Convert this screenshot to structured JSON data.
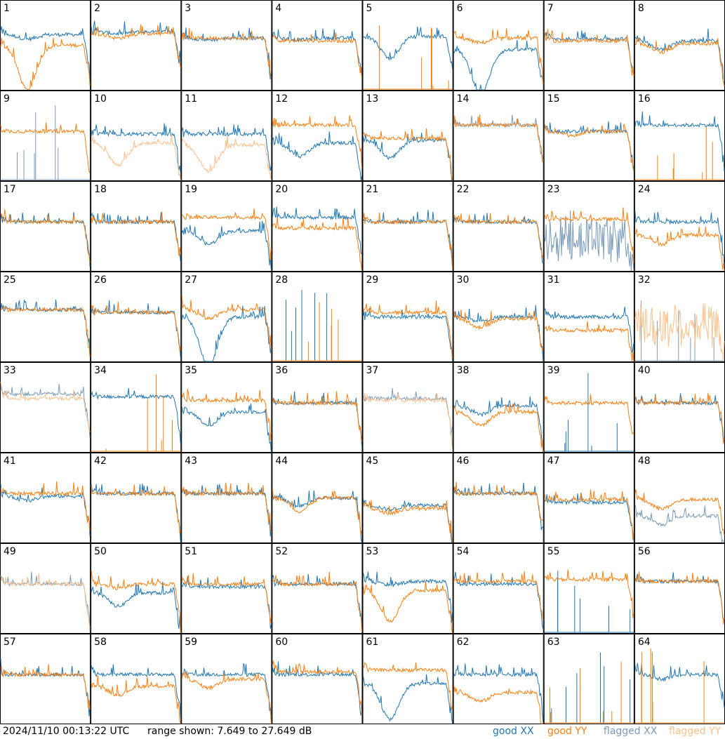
{
  "colors": {
    "good_xx": "#1f77b4",
    "good_yy": "#ff7f0e",
    "flagged_xx": "#7a9bb8",
    "flagged_yy": "#fdc08a",
    "border": "#000000"
  },
  "footer": {
    "timestamp": "2024/11/10 00:13:22 UTC",
    "range_text": "range shown: 7.649 to 27.649 dB",
    "legend": {
      "good_xx": "good XX",
      "good_yy": "good YY",
      "flagged_xx": "flagged XX",
      "flagged_yy": "flagged YY"
    }
  },
  "chart_data": {
    "type": "line",
    "layout": "8x8 small multiples",
    "ylim_db": [
      7.649,
      27.649
    ],
    "panels": [
      {
        "label": "1",
        "xx": {
          "lvl": 0.62,
          "dip": 0.05,
          "flag": false
        },
        "yy": {
          "lvl": 0.5,
          "dip": 0.5,
          "flag": false
        }
      },
      {
        "label": "2",
        "xx": {
          "lvl": 0.65,
          "dip": 0.02,
          "flag": false
        },
        "yy": {
          "lvl": 0.63,
          "dip": 0.05,
          "flag": false
        }
      },
      {
        "label": "3",
        "xx": {
          "lvl": 0.58,
          "dip": 0.02,
          "flag": false
        },
        "yy": {
          "lvl": 0.58,
          "dip": 0.0,
          "flag": false
        }
      },
      {
        "label": "4",
        "xx": {
          "lvl": 0.58,
          "dip": 0.02,
          "flag": false
        },
        "yy": {
          "lvl": 0.55,
          "dip": 0.0,
          "flag": false
        }
      },
      {
        "label": "5",
        "xx": {
          "lvl": 0.6,
          "dip": 0.25,
          "flag": false
        },
        "yy": {
          "lvl": 0.0,
          "dip": 0.0,
          "flag": false,
          "dead": true
        }
      },
      {
        "label": "6",
        "xx": {
          "lvl": 0.45,
          "dip": 0.5,
          "flag": false
        },
        "yy": {
          "lvl": 0.58,
          "dip": 0.05,
          "flag": false
        }
      },
      {
        "label": "7",
        "xx": {
          "lvl": 0.57,
          "dip": 0.0,
          "flag": false
        },
        "yy": {
          "lvl": 0.55,
          "dip": 0.0,
          "flag": false
        }
      },
      {
        "label": "8",
        "xx": {
          "lvl": 0.55,
          "dip": 0.1,
          "flag": false
        },
        "yy": {
          "lvl": 0.52,
          "dip": 0.1,
          "flag": false
        }
      },
      {
        "label": "9",
        "xx": {
          "lvl": 0.0,
          "dip": 0.0,
          "flag": true,
          "dead": true
        },
        "yy": {
          "lvl": 0.55,
          "dip": 0.0,
          "flag": false
        }
      },
      {
        "label": "10",
        "xx": {
          "lvl": 0.52,
          "dip": 0.0,
          "flag": false
        },
        "yy": {
          "lvl": 0.42,
          "dip": 0.25,
          "flag": true
        }
      },
      {
        "label": "11",
        "xx": {
          "lvl": 0.52,
          "dip": 0.0,
          "flag": false
        },
        "yy": {
          "lvl": 0.4,
          "dip": 0.3,
          "flag": true
        }
      },
      {
        "label": "12",
        "xx": {
          "lvl": 0.42,
          "dip": 0.15,
          "flag": false
        },
        "yy": {
          "lvl": 0.62,
          "dip": 0.0,
          "flag": false
        }
      },
      {
        "label": "13",
        "xx": {
          "lvl": 0.45,
          "dip": 0.2,
          "flag": false
        },
        "yy": {
          "lvl": 0.47,
          "dip": 0.0,
          "flag": false
        }
      },
      {
        "label": "14",
        "xx": {
          "lvl": 0.62,
          "dip": 0.0,
          "flag": true
        },
        "yy": {
          "lvl": 0.62,
          "dip": 0.0,
          "flag": false
        }
      },
      {
        "label": "15",
        "xx": {
          "lvl": 0.55,
          "dip": 0.0,
          "flag": false
        },
        "yy": {
          "lvl": 0.55,
          "dip": 0.05,
          "flag": false
        }
      },
      {
        "label": "16",
        "xx": {
          "lvl": 0.62,
          "dip": 0.0,
          "flag": false
        },
        "yy": {
          "lvl": 0.0,
          "dip": 0.0,
          "flag": false,
          "dead": true
        }
      },
      {
        "label": "17",
        "xx": {
          "lvl": 0.55,
          "dip": 0.0,
          "flag": false
        },
        "yy": {
          "lvl": 0.55,
          "dip": 0.0,
          "flag": false
        }
      },
      {
        "label": "18",
        "xx": {
          "lvl": 0.55,
          "dip": 0.0,
          "flag": false
        },
        "yy": {
          "lvl": 0.55,
          "dip": 0.0,
          "flag": false
        }
      },
      {
        "label": "19",
        "xx": {
          "lvl": 0.45,
          "dip": 0.15,
          "flag": false
        },
        "yy": {
          "lvl": 0.6,
          "dip": 0.0,
          "flag": false
        }
      },
      {
        "label": "20",
        "xx": {
          "lvl": 0.6,
          "dip": 0.0,
          "flag": false
        },
        "yy": {
          "lvl": 0.48,
          "dip": 0.0,
          "flag": false
        }
      },
      {
        "label": "21",
        "xx": {
          "lvl": 0.55,
          "dip": 0.0,
          "flag": false
        },
        "yy": {
          "lvl": 0.55,
          "dip": 0.0,
          "flag": false
        }
      },
      {
        "label": "22",
        "xx": {
          "lvl": 0.55,
          "dip": 0.0,
          "flag": false
        },
        "yy": {
          "lvl": 0.55,
          "dip": 0.0,
          "flag": false
        }
      },
      {
        "label": "23",
        "xx": {
          "lvl": 0.35,
          "dip": 0.0,
          "flag": true,
          "noisy": true
        },
        "yy": {
          "lvl": 0.58,
          "dip": 0.0,
          "flag": false
        }
      },
      {
        "label": "24",
        "xx": {
          "lvl": 0.55,
          "dip": 0.0,
          "flag": false
        },
        "yy": {
          "lvl": 0.4,
          "dip": 0.1,
          "flag": false
        }
      },
      {
        "label": "25",
        "xx": {
          "lvl": 0.58,
          "dip": 0.0,
          "flag": false
        },
        "yy": {
          "lvl": 0.58,
          "dip": 0.0,
          "flag": false
        }
      },
      {
        "label": "26",
        "xx": {
          "lvl": 0.55,
          "dip": 0.0,
          "flag": false
        },
        "yy": {
          "lvl": 0.55,
          "dip": 0.0,
          "flag": false
        }
      },
      {
        "label": "27",
        "xx": {
          "lvl": 0.5,
          "dip": 0.55,
          "flag": false
        },
        "yy": {
          "lvl": 0.58,
          "dip": 0.1,
          "flag": false
        }
      },
      {
        "label": "28",
        "xx": {
          "lvl": 0.0,
          "dip": 0.0,
          "flag": false,
          "dead": true
        },
        "yy": {
          "lvl": 0.0,
          "dip": 0.0,
          "flag": false,
          "dead": true
        }
      },
      {
        "label": "29",
        "xx": {
          "lvl": 0.5,
          "dip": 0.0,
          "flag": false
        },
        "yy": {
          "lvl": 0.55,
          "dip": 0.0,
          "flag": false
        }
      },
      {
        "label": "30",
        "xx": {
          "lvl": 0.5,
          "dip": 0.05,
          "flag": false
        },
        "yy": {
          "lvl": 0.48,
          "dip": 0.1,
          "flag": false
        }
      },
      {
        "label": "31",
        "xx": {
          "lvl": 0.5,
          "dip": 0.0,
          "flag": false
        },
        "yy": {
          "lvl": 0.35,
          "dip": 0.0,
          "flag": false
        }
      },
      {
        "label": "32",
        "xx": {
          "lvl": 0.0,
          "dip": 0.0,
          "flag": true,
          "dead": true
        },
        "yy": {
          "lvl": 0.4,
          "dip": 0.0,
          "flag": true,
          "noisy": true
        }
      },
      {
        "label": "33",
        "xx": {
          "lvl": 0.65,
          "dip": 0.0,
          "flag": true
        },
        "yy": {
          "lvl": 0.6,
          "dip": 0.0,
          "flag": true
        }
      },
      {
        "label": "34",
        "xx": {
          "lvl": 0.62,
          "dip": 0.0,
          "flag": false
        },
        "yy": {
          "lvl": 0.0,
          "dip": 0.0,
          "flag": false,
          "dead": true
        }
      },
      {
        "label": "35",
        "xx": {
          "lvl": 0.45,
          "dip": 0.15,
          "flag": false
        },
        "yy": {
          "lvl": 0.58,
          "dip": 0.0,
          "flag": false
        }
      },
      {
        "label": "36",
        "xx": {
          "lvl": 0.55,
          "dip": 0.0,
          "flag": false
        },
        "yy": {
          "lvl": 0.55,
          "dip": 0.0,
          "flag": false
        }
      },
      {
        "label": "37",
        "xx": {
          "lvl": 0.6,
          "dip": 0.0,
          "flag": true
        },
        "yy": {
          "lvl": 0.58,
          "dip": 0.0,
          "flag": true
        }
      },
      {
        "label": "38",
        "xx": {
          "lvl": 0.52,
          "dip": 0.1,
          "flag": false
        },
        "yy": {
          "lvl": 0.45,
          "dip": 0.15,
          "flag": false
        }
      },
      {
        "label": "39",
        "xx": {
          "lvl": 0.0,
          "dip": 0.0,
          "flag": false,
          "dead": true
        },
        "yy": {
          "lvl": 0.55,
          "dip": 0.0,
          "flag": false
        }
      },
      {
        "label": "40",
        "xx": {
          "lvl": 0.55,
          "dip": 0.0,
          "flag": false
        },
        "yy": {
          "lvl": 0.55,
          "dip": 0.0,
          "flag": false
        }
      },
      {
        "label": "41",
        "xx": {
          "lvl": 0.52,
          "dip": 0.05,
          "flag": false
        },
        "yy": {
          "lvl": 0.55,
          "dip": 0.0,
          "flag": false
        }
      },
      {
        "label": "42",
        "xx": {
          "lvl": 0.55,
          "dip": 0.0,
          "flag": false
        },
        "yy": {
          "lvl": 0.55,
          "dip": 0.0,
          "flag": false
        }
      },
      {
        "label": "43",
        "xx": {
          "lvl": 0.55,
          "dip": 0.0,
          "flag": false
        },
        "yy": {
          "lvl": 0.55,
          "dip": 0.0,
          "flag": false
        }
      },
      {
        "label": "44",
        "xx": {
          "lvl": 0.5,
          "dip": 0.1,
          "flag": false
        },
        "yy": {
          "lvl": 0.5,
          "dip": 0.15,
          "flag": false
        }
      },
      {
        "label": "45",
        "xx": {
          "lvl": 0.42,
          "dip": 0.05,
          "flag": false
        },
        "yy": {
          "lvl": 0.38,
          "dip": 0.05,
          "flag": false
        }
      },
      {
        "label": "46",
        "xx": {
          "lvl": 0.55,
          "dip": 0.0,
          "flag": false
        },
        "yy": {
          "lvl": 0.55,
          "dip": 0.0,
          "flag": false
        }
      },
      {
        "label": "47",
        "xx": {
          "lvl": 0.45,
          "dip": 0.0,
          "flag": false
        },
        "yy": {
          "lvl": 0.48,
          "dip": 0.0,
          "flag": false
        }
      },
      {
        "label": "48",
        "xx": {
          "lvl": 0.3,
          "dip": 0.1,
          "flag": true
        },
        "yy": {
          "lvl": 0.48,
          "dip": 0.1,
          "flag": false
        }
      },
      {
        "label": "49",
        "xx": {
          "lvl": 0.55,
          "dip": 0.0,
          "flag": true
        },
        "yy": {
          "lvl": 0.55,
          "dip": 0.0,
          "flag": true
        }
      },
      {
        "label": "50",
        "xx": {
          "lvl": 0.45,
          "dip": 0.15,
          "flag": false
        },
        "yy": {
          "lvl": 0.55,
          "dip": 0.05,
          "flag": false
        }
      },
      {
        "label": "51",
        "xx": {
          "lvl": 0.52,
          "dip": 0.0,
          "flag": false
        },
        "yy": {
          "lvl": 0.55,
          "dip": 0.0,
          "flag": false
        }
      },
      {
        "label": "52",
        "xx": {
          "lvl": 0.55,
          "dip": 0.0,
          "flag": false
        },
        "yy": {
          "lvl": 0.55,
          "dip": 0.0,
          "flag": false
        }
      },
      {
        "label": "53",
        "xx": {
          "lvl": 0.58,
          "dip": 0.05,
          "flag": false
        },
        "yy": {
          "lvl": 0.48,
          "dip": 0.35,
          "flag": false
        }
      },
      {
        "label": "54",
        "xx": {
          "lvl": 0.55,
          "dip": 0.0,
          "flag": false
        },
        "yy": {
          "lvl": 0.58,
          "dip": 0.0,
          "flag": false
        }
      },
      {
        "label": "55",
        "xx": {
          "lvl": 0.0,
          "dip": 0.0,
          "flag": false,
          "dead": true
        },
        "yy": {
          "lvl": 0.6,
          "dip": 0.0,
          "flag": false
        }
      },
      {
        "label": "56",
        "xx": {
          "lvl": 0.58,
          "dip": 0.0,
          "flag": false
        },
        "yy": {
          "lvl": 0.58,
          "dip": 0.0,
          "flag": false
        }
      },
      {
        "label": "57",
        "xx": {
          "lvl": 0.55,
          "dip": 0.0,
          "flag": false
        },
        "yy": {
          "lvl": 0.55,
          "dip": 0.0,
          "flag": false
        }
      },
      {
        "label": "58",
        "xx": {
          "lvl": 0.55,
          "dip": 0.0,
          "flag": false
        },
        "yy": {
          "lvl": 0.42,
          "dip": 0.1,
          "flag": false
        }
      },
      {
        "label": "59",
        "xx": {
          "lvl": 0.55,
          "dip": 0.0,
          "flag": false
        },
        "yy": {
          "lvl": 0.5,
          "dip": 0.1,
          "flag": false
        }
      },
      {
        "label": "60",
        "xx": {
          "lvl": 0.55,
          "dip": 0.0,
          "flag": false
        },
        "yy": {
          "lvl": 0.58,
          "dip": 0.0,
          "flag": false
        }
      },
      {
        "label": "61",
        "xx": {
          "lvl": 0.45,
          "dip": 0.4,
          "flag": false
        },
        "yy": {
          "lvl": 0.6,
          "dip": 0.0,
          "flag": false
        }
      },
      {
        "label": "62",
        "xx": {
          "lvl": 0.55,
          "dip": 0.0,
          "flag": false
        },
        "yy": {
          "lvl": 0.35,
          "dip": 0.1,
          "flag": false
        }
      },
      {
        "label": "63",
        "xx": {
          "lvl": 0.0,
          "dip": 0.0,
          "flag": false,
          "dead": true
        },
        "yy": {
          "lvl": 0.0,
          "dip": 0.0,
          "flag": false,
          "dead": true
        }
      },
      {
        "label": "64",
        "xx": {
          "lvl": 0.55,
          "dip": 0.05,
          "flag": false
        },
        "yy": {
          "lvl": 0.0,
          "dip": 0.0,
          "flag": false,
          "dead": true
        }
      }
    ]
  }
}
